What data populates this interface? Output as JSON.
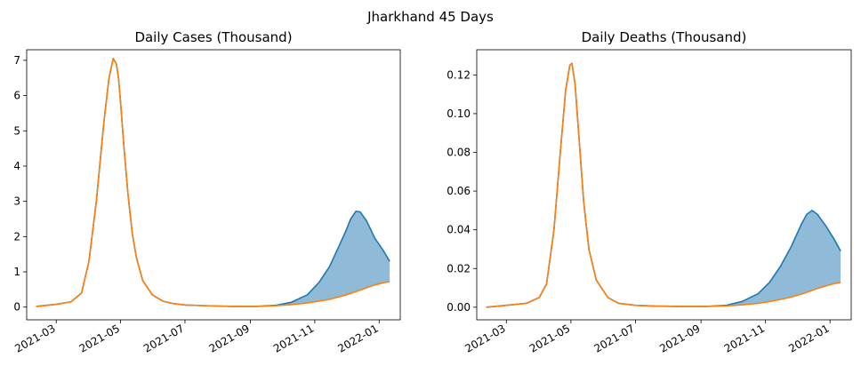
{
  "figure": {
    "suptitle": "Jharkhand 45 Days"
  },
  "colors": {
    "actual": "#1f77b4",
    "baseline": "#ff7f0e",
    "fill": "#8fbbd9",
    "axis": "#000000",
    "background": "#ffffff"
  },
  "chart_data": [
    {
      "type": "line",
      "title": "Daily Cases (Thousand)",
      "xlabel": "",
      "ylabel": "",
      "x_type": "date",
      "xlim": [
        "2021-02-01",
        "2022-01-21"
      ],
      "ylim": [
        -0.36,
        7.3
      ],
      "yticks": [
        0,
        1,
        2,
        3,
        4,
        5,
        6,
        7
      ],
      "ytick_labels": [
        "0",
        "1",
        "2",
        "3",
        "4",
        "5",
        "6",
        "7"
      ],
      "xticks": [
        "2021-03-01",
        "2021-05-01",
        "2021-07-01",
        "2021-09-01",
        "2021-11-01",
        "2022-01-01"
      ],
      "xtick_labels": [
        "2021-03",
        "2021-05",
        "2021-07",
        "2021-09",
        "2021-11",
        "2022-01"
      ],
      "fill_between": true,
      "grid": false,
      "series": [
        {
          "role": "actual",
          "x": [
            "2021-02-10",
            "2021-03-01",
            "2021-03-15",
            "2021-03-25",
            "2021-04-01",
            "2021-04-08",
            "2021-04-15",
            "2021-04-20",
            "2021-04-24",
            "2021-04-27",
            "2021-04-29",
            "2021-05-01",
            "2021-05-04",
            "2021-05-08",
            "2021-05-12",
            "2021-05-16",
            "2021-05-22",
            "2021-05-31",
            "2021-06-10",
            "2021-06-20",
            "2021-07-01",
            "2021-07-20",
            "2021-08-15",
            "2021-09-06",
            "2021-09-25",
            "2021-10-10",
            "2021-10-25",
            "2021-11-05",
            "2021-11-15",
            "2021-11-25",
            "2021-12-01",
            "2021-12-05",
            "2021-12-10",
            "2021-12-14",
            "2021-12-20",
            "2021-12-28",
            "2022-01-05",
            "2022-01-11"
          ],
          "y": [
            0.02,
            0.08,
            0.15,
            0.4,
            1.3,
            3.0,
            5.2,
            6.5,
            7.05,
            6.9,
            6.5,
            5.8,
            4.6,
            3.2,
            2.1,
            1.4,
            0.75,
            0.35,
            0.17,
            0.1,
            0.06,
            0.04,
            0.02,
            0.02,
            0.05,
            0.14,
            0.35,
            0.7,
            1.15,
            1.8,
            2.2,
            2.5,
            2.72,
            2.7,
            2.45,
            1.95,
            1.6,
            1.3
          ]
        },
        {
          "role": "baseline",
          "x": [
            "2021-02-10",
            "2021-03-01",
            "2021-03-15",
            "2021-03-25",
            "2021-04-01",
            "2021-04-08",
            "2021-04-15",
            "2021-04-20",
            "2021-04-24",
            "2021-04-27",
            "2021-04-29",
            "2021-05-01",
            "2021-05-04",
            "2021-05-08",
            "2021-05-12",
            "2021-05-16",
            "2021-05-22",
            "2021-05-31",
            "2021-06-10",
            "2021-06-20",
            "2021-07-01",
            "2021-07-20",
            "2021-08-15",
            "2021-09-06",
            "2021-09-25",
            "2021-10-10",
            "2021-10-25",
            "2021-11-05",
            "2021-11-15",
            "2021-11-25",
            "2021-12-01",
            "2021-12-05",
            "2021-12-10",
            "2021-12-14",
            "2021-12-20",
            "2021-12-28",
            "2022-01-05",
            "2022-01-11"
          ],
          "y": [
            0.02,
            0.08,
            0.15,
            0.4,
            1.3,
            3.0,
            5.2,
            6.5,
            7.05,
            6.9,
            6.5,
            5.8,
            4.6,
            3.2,
            2.1,
            1.4,
            0.75,
            0.35,
            0.17,
            0.1,
            0.06,
            0.04,
            0.02,
            0.02,
            0.04,
            0.07,
            0.12,
            0.17,
            0.22,
            0.3,
            0.35,
            0.39,
            0.44,
            0.48,
            0.55,
            0.63,
            0.69,
            0.72
          ]
        }
      ]
    },
    {
      "type": "line",
      "title": "Daily Deaths (Thousand)",
      "xlabel": "",
      "ylabel": "",
      "x_type": "date",
      "xlim": [
        "2021-02-01",
        "2022-01-21"
      ],
      "ylim": [
        -0.0065,
        0.133
      ],
      "yticks": [
        0,
        0.02,
        0.04,
        0.06,
        0.08,
        0.1,
        0.12
      ],
      "ytick_labels": [
        "0.00",
        "0.02",
        "0.04",
        "0.06",
        "0.08",
        "0.10",
        "0.12"
      ],
      "xticks": [
        "2021-03-01",
        "2021-05-01",
        "2021-07-01",
        "2021-09-01",
        "2021-11-01",
        "2022-01-01"
      ],
      "xtick_labels": [
        "2021-03",
        "2021-05",
        "2021-07",
        "2021-09",
        "2021-11",
        "2022-01"
      ],
      "fill_between": true,
      "grid": false,
      "series": [
        {
          "role": "actual",
          "x": [
            "2021-02-10",
            "2021-03-01",
            "2021-03-20",
            "2021-04-01",
            "2021-04-08",
            "2021-04-15",
            "2021-04-21",
            "2021-04-26",
            "2021-04-30",
            "2021-05-02",
            "2021-05-05",
            "2021-05-09",
            "2021-05-13",
            "2021-05-18",
            "2021-05-25",
            "2021-06-05",
            "2021-06-15",
            "2021-07-01",
            "2021-07-20",
            "2021-08-15",
            "2021-09-06",
            "2021-09-25",
            "2021-10-10",
            "2021-10-25",
            "2021-11-05",
            "2021-11-15",
            "2021-11-25",
            "2021-12-05",
            "2021-12-10",
            "2021-12-15",
            "2021-12-20",
            "2021-12-28",
            "2022-01-05",
            "2022-01-11"
          ],
          "y": [
            0.0,
            0.001,
            0.002,
            0.005,
            0.012,
            0.04,
            0.08,
            0.112,
            0.125,
            0.126,
            0.115,
            0.085,
            0.055,
            0.03,
            0.014,
            0.005,
            0.002,
            0.001,
            0.0006,
            0.0004,
            0.0004,
            0.001,
            0.003,
            0.007,
            0.013,
            0.021,
            0.031,
            0.043,
            0.048,
            0.05,
            0.048,
            0.042,
            0.035,
            0.029
          ]
        },
        {
          "role": "baseline",
          "x": [
            "2021-02-10",
            "2021-03-01",
            "2021-03-20",
            "2021-04-01",
            "2021-04-08",
            "2021-04-15",
            "2021-04-21",
            "2021-04-26",
            "2021-04-30",
            "2021-05-02",
            "2021-05-05",
            "2021-05-09",
            "2021-05-13",
            "2021-05-18",
            "2021-05-25",
            "2021-06-05",
            "2021-06-15",
            "2021-07-01",
            "2021-07-20",
            "2021-08-15",
            "2021-09-06",
            "2021-09-25",
            "2021-10-10",
            "2021-10-25",
            "2021-11-05",
            "2021-11-15",
            "2021-11-25",
            "2021-12-05",
            "2021-12-10",
            "2021-12-15",
            "2021-12-20",
            "2021-12-28",
            "2022-01-05",
            "2022-01-11"
          ],
          "y": [
            0.0,
            0.001,
            0.002,
            0.005,
            0.012,
            0.04,
            0.08,
            0.112,
            0.125,
            0.126,
            0.115,
            0.085,
            0.055,
            0.03,
            0.014,
            0.005,
            0.002,
            0.001,
            0.0006,
            0.0004,
            0.0004,
            0.0007,
            0.0012,
            0.002,
            0.003,
            0.004,
            0.0052,
            0.0068,
            0.0077,
            0.0087,
            0.0097,
            0.011,
            0.0122,
            0.0128
          ]
        }
      ]
    }
  ]
}
